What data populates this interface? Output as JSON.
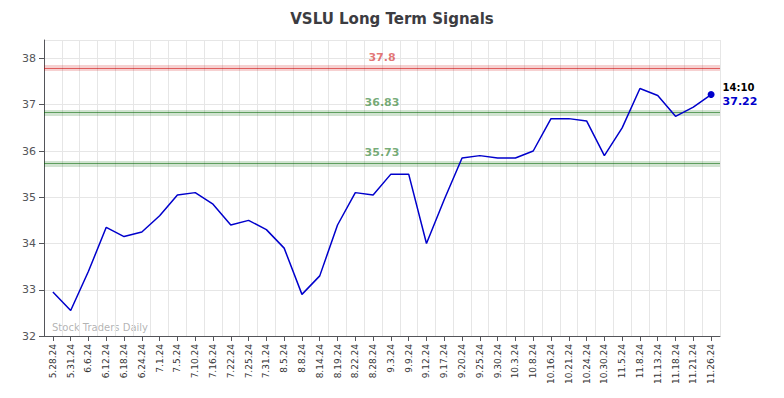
{
  "chart_data": {
    "type": "line",
    "title": "VSLU Long Term Signals",
    "categories": [
      "5.28.24",
      "5.31.24",
      "6.6.24",
      "6.12.24",
      "6.18.24",
      "6.24.24",
      "7.1.24",
      "7.5.24",
      "7.10.24",
      "7.16.24",
      "7.22.24",
      "7.25.24",
      "7.31.24",
      "8.5.24",
      "8.8.24",
      "8.14.24",
      "8.19.24",
      "8.22.24",
      "8.28.24",
      "9.3.24",
      "9.9.24",
      "9.12.24",
      "9.17.24",
      "9.20.24",
      "9.25.24",
      "9.30.24",
      "10.3.24",
      "10.8.24",
      "10.16.24",
      "10.21.24",
      "10.24.24",
      "10.30.24",
      "11.5.24",
      "11.8.24",
      "11.13.24",
      "11.18.24",
      "11.21.24",
      "11.26.24"
    ],
    "values": [
      32.95,
      32.55,
      33.4,
      34.35,
      34.15,
      34.25,
      34.6,
      35.05,
      35.1,
      34.85,
      34.4,
      34.5,
      34.3,
      33.9,
      32.9,
      33.3,
      34.4,
      35.1,
      35.05,
      35.5,
      35.5,
      34.0,
      34.95,
      35.85,
      35.9,
      35.85,
      35.85,
      36.0,
      36.7,
      36.7,
      36.65,
      35.9,
      36.5,
      37.35,
      37.2,
      36.75,
      36.95,
      37.22
    ],
    "color": "#0000cc",
    "ylim": [
      32,
      38.4
    ],
    "yticks": [
      32,
      33,
      34,
      35,
      36,
      37,
      38
    ],
    "grid": true,
    "hlines": [
      {
        "value": 37.8,
        "color": "#cc0000"
      },
      {
        "value": 36.83,
        "color": "#006600"
      },
      {
        "value": 35.73,
        "color": "#006600"
      }
    ],
    "last_point": {
      "time": "14:10",
      "price": 37.22
    },
    "watermark": "Stock Traders Daily"
  }
}
